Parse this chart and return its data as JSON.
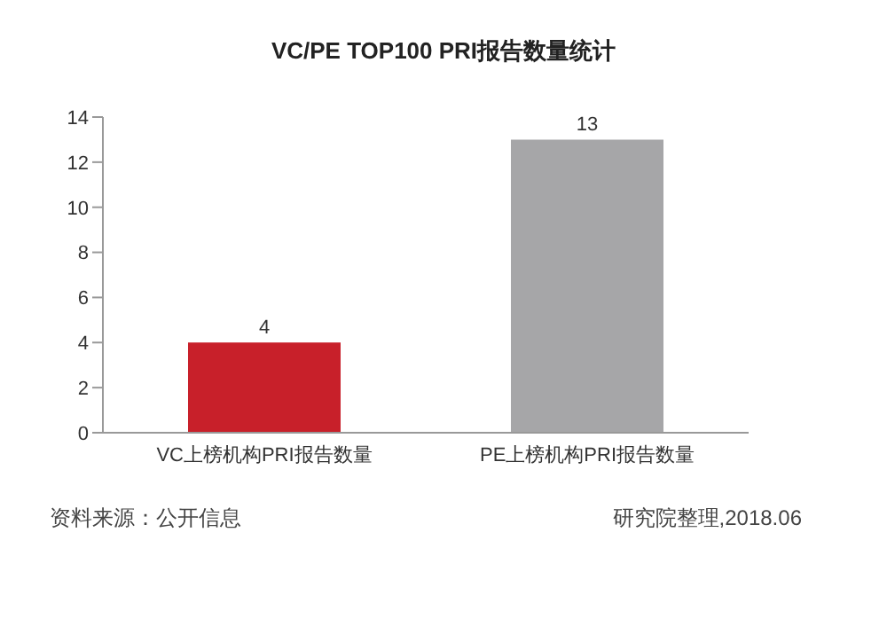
{
  "chart_data": {
    "type": "bar",
    "title": "VC/PE TOP100 PRI报告数量统计",
    "categories": [
      "VC上榜机构PRI报告数量",
      "PE上榜机构PRI报告数量"
    ],
    "values": [
      4,
      13
    ],
    "colors": [
      "#c8202a",
      "#a6a6a8"
    ],
    "ylim": [
      0,
      14
    ],
    "yticks": [
      0,
      2,
      4,
      6,
      8,
      10,
      12,
      14
    ],
    "data_labels": true,
    "annotations": [
      "资料来源：公开信息",
      "研究院整理,2018.06"
    ]
  }
}
